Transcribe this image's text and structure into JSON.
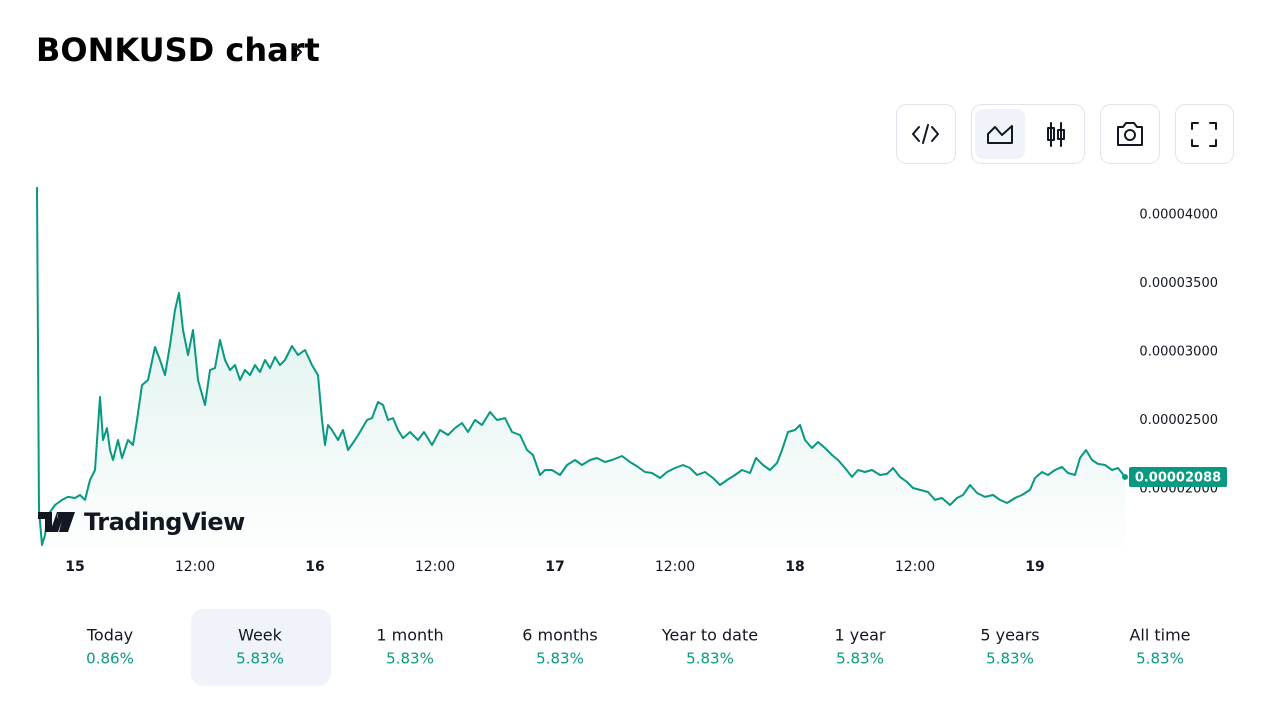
{
  "header": {
    "title": "BONKUSD chart"
  },
  "chart_data": {
    "type": "area",
    "color": "#089981",
    "watermark": "TradingView",
    "xlim": [
      -3.8,
      105
    ],
    "ylim": [
      1.58e-05,
      4.22e-05
    ],
    "xticks": [
      {
        "value": 0,
        "label": "15"
      },
      {
        "value": 12,
        "label": "12:00"
      },
      {
        "value": 24,
        "label": "16"
      },
      {
        "value": 36,
        "label": "12:00"
      },
      {
        "value": 48,
        "label": "17"
      },
      {
        "value": 60,
        "label": "12:00"
      },
      {
        "value": 72,
        "label": "18"
      },
      {
        "value": 84,
        "label": "12:00"
      },
      {
        "value": 96,
        "label": "19"
      }
    ],
    "yticks": [
      {
        "value": 2e-05,
        "label": "0.00002000"
      },
      {
        "value": 2.5e-05,
        "label": "0.00002500"
      },
      {
        "value": 3e-05,
        "label": "0.00003000"
      },
      {
        "value": 3.5e-05,
        "label": "0.00003500"
      },
      {
        "value": 4e-05,
        "label": "0.00004000"
      }
    ],
    "last_label": "0.00002088",
    "x": [
      -3.8,
      -3.6,
      -3.3,
      -3,
      -2.7,
      -2,
      -1.3,
      -0.7,
      0,
      0.5,
      1,
      1.5,
      2,
      2.5,
      2.8,
      3.2,
      3.5,
      3.8,
      4.3,
      4.7,
      5.3,
      5.8,
      6.2,
      6.7,
      7.3,
      8,
      8.5,
      9,
      9.5,
      10,
      10.4,
      10.8,
      11.3,
      11.8,
      12.3,
      13,
      13.5,
      14,
      14.5,
      15,
      15.5,
      16,
      16.5,
      17,
      17.5,
      18,
      18.5,
      19,
      19.5,
      20,
      20.5,
      21,
      21.7,
      22.3,
      23,
      23.7,
      24.3,
      24.7,
      25,
      25.3,
      25.7,
      26.3,
      26.8,
      27.3,
      28,
      28.5,
      29.2,
      29.7,
      30.3,
      30.8,
      31.3,
      31.8,
      32.3,
      32.8,
      33.5,
      34.3,
      34.9,
      35.7,
      36.5,
      37.3,
      38,
      38.7,
      39.3,
      40,
      40.7,
      41.5,
      42.2,
      43,
      43.7,
      44.5,
      45.2,
      45.8,
      46.5,
      47,
      47.7,
      48.5,
      49.2,
      50,
      50.7,
      51.5,
      52.2,
      53,
      53.7,
      54.7,
      55.5,
      56.3,
      57,
      57.7,
      58.5,
      59.2,
      60,
      60.8,
      61.5,
      62.2,
      63,
      63.8,
      64.5,
      65.2,
      66,
      66.7,
      67.5,
      68.1,
      68.8,
      69.5,
      70.2,
      70.7,
      71.3,
      72,
      72.5,
      73,
      73.7,
      74.3,
      75,
      75.7,
      76.3,
      77,
      77.7,
      78.3,
      79,
      79.7,
      80.5,
      81.2,
      81.8,
      82.5,
      83.2,
      83.8,
      84.5,
      85.3,
      86,
      86.7,
      87.5,
      88.2,
      88.8,
      89.5,
      90.2,
      91,
      91.8,
      92.5,
      93.2,
      94,
      94.7,
      95.5,
      96,
      96.7,
      97.3,
      98,
      98.7,
      99.3,
      100,
      100.5,
      101.1,
      101.7,
      102.3,
      103,
      103.7,
      104.3,
      105
    ],
    "values": [
      4.205e-05,
      1.847e-05,
      1.591e-05,
      1.664e-05,
      1.81e-05,
      1.883e-05,
      1.92e-05,
      1.942e-05,
      1.934e-05,
      1.956e-05,
      1.92e-05,
      2.066e-05,
      2.139e-05,
      2.672e-05,
      2.358e-05,
      2.445e-05,
      2.285e-05,
      2.212e-05,
      2.358e-05,
      2.226e-05,
      2.358e-05,
      2.321e-05,
      2.504e-05,
      2.759e-05,
      2.796e-05,
      3.037e-05,
      2.942e-05,
      2.832e-05,
      3.051e-05,
      3.307e-05,
      3.431e-05,
      3.161e-05,
      2.978e-05,
      3.161e-05,
      2.796e-05,
      2.613e-05,
      2.869e-05,
      2.883e-05,
      3.088e-05,
      2.942e-05,
      2.869e-05,
      2.905e-05,
      2.796e-05,
      2.869e-05,
      2.832e-05,
      2.905e-05,
      2.854e-05,
      2.942e-05,
      2.883e-05,
      2.964e-05,
      2.905e-05,
      2.942e-05,
      3.044e-05,
      2.978e-05,
      3.015e-05,
      2.905e-05,
      2.832e-05,
      2.504e-05,
      2.321e-05,
      2.467e-05,
      2.431e-05,
      2.358e-05,
      2.431e-05,
      2.285e-05,
      2.358e-05,
      2.416e-05,
      2.504e-05,
      2.518e-05,
      2.635e-05,
      2.613e-05,
      2.504e-05,
      2.518e-05,
      2.431e-05,
      2.372e-05,
      2.416e-05,
      2.358e-05,
      2.416e-05,
      2.321e-05,
      2.431e-05,
      2.394e-05,
      2.445e-05,
      2.482e-05,
      2.416e-05,
      2.504e-05,
      2.467e-05,
      2.562e-05,
      2.504e-05,
      2.518e-05,
      2.416e-05,
      2.394e-05,
      2.285e-05,
      2.248e-05,
      2.102e-05,
      2.139e-05,
      2.139e-05,
      2.102e-05,
      2.175e-05,
      2.212e-05,
      2.175e-05,
      2.212e-05,
      2.226e-05,
      2.197e-05,
      2.212e-05,
      2.241e-05,
      2.197e-05,
      2.161e-05,
      2.124e-05,
      2.117e-05,
      2.08e-05,
      2.124e-05,
      2.153e-05,
      2.175e-05,
      2.153e-05,
      2.102e-05,
      2.124e-05,
      2.08e-05,
      2.029e-05,
      2.066e-05,
      2.102e-05,
      2.139e-05,
      2.117e-05,
      2.226e-05,
      2.175e-05,
      2.139e-05,
      2.19e-05,
      2.285e-05,
      2.416e-05,
      2.431e-05,
      2.467e-05,
      2.358e-05,
      2.299e-05,
      2.343e-05,
      2.299e-05,
      2.248e-05,
      2.212e-05,
      2.153e-05,
      2.088e-05,
      2.139e-05,
      2.124e-05,
      2.139e-05,
      2.102e-05,
      2.11e-05,
      2.153e-05,
      2.088e-05,
      2.051e-05,
      2.007e-05,
      1.993e-05,
      1.978e-05,
      1.92e-05,
      1.934e-05,
      1.883e-05,
      1.934e-05,
      1.956e-05,
      2.029e-05,
      1.971e-05,
      1.942e-05,
      1.956e-05,
      1.92e-05,
      1.898e-05,
      1.934e-05,
      1.956e-05,
      1.993e-05,
      2.08e-05,
      2.124e-05,
      2.102e-05,
      2.139e-05,
      2.161e-05,
      2.117e-05,
      2.102e-05,
      2.226e-05,
      2.285e-05,
      2.212e-05,
      2.183e-05,
      2.175e-05,
      2.139e-05,
      2.153e-05,
      2.088e-05
    ]
  },
  "periods": [
    {
      "label": "Today",
      "change": "0.86%"
    },
    {
      "label": "Week",
      "change": "5.83%"
    },
    {
      "label": "1 month",
      "change": "5.83%"
    },
    {
      "label": "6 months",
      "change": "5.83%"
    },
    {
      "label": "Year to date",
      "change": "5.83%"
    },
    {
      "label": "1 year",
      "change": "5.83%"
    },
    {
      "label": "5 years",
      "change": "5.83%"
    },
    {
      "label": "All time",
      "change": "5.83%"
    }
  ],
  "selected_period": 1
}
